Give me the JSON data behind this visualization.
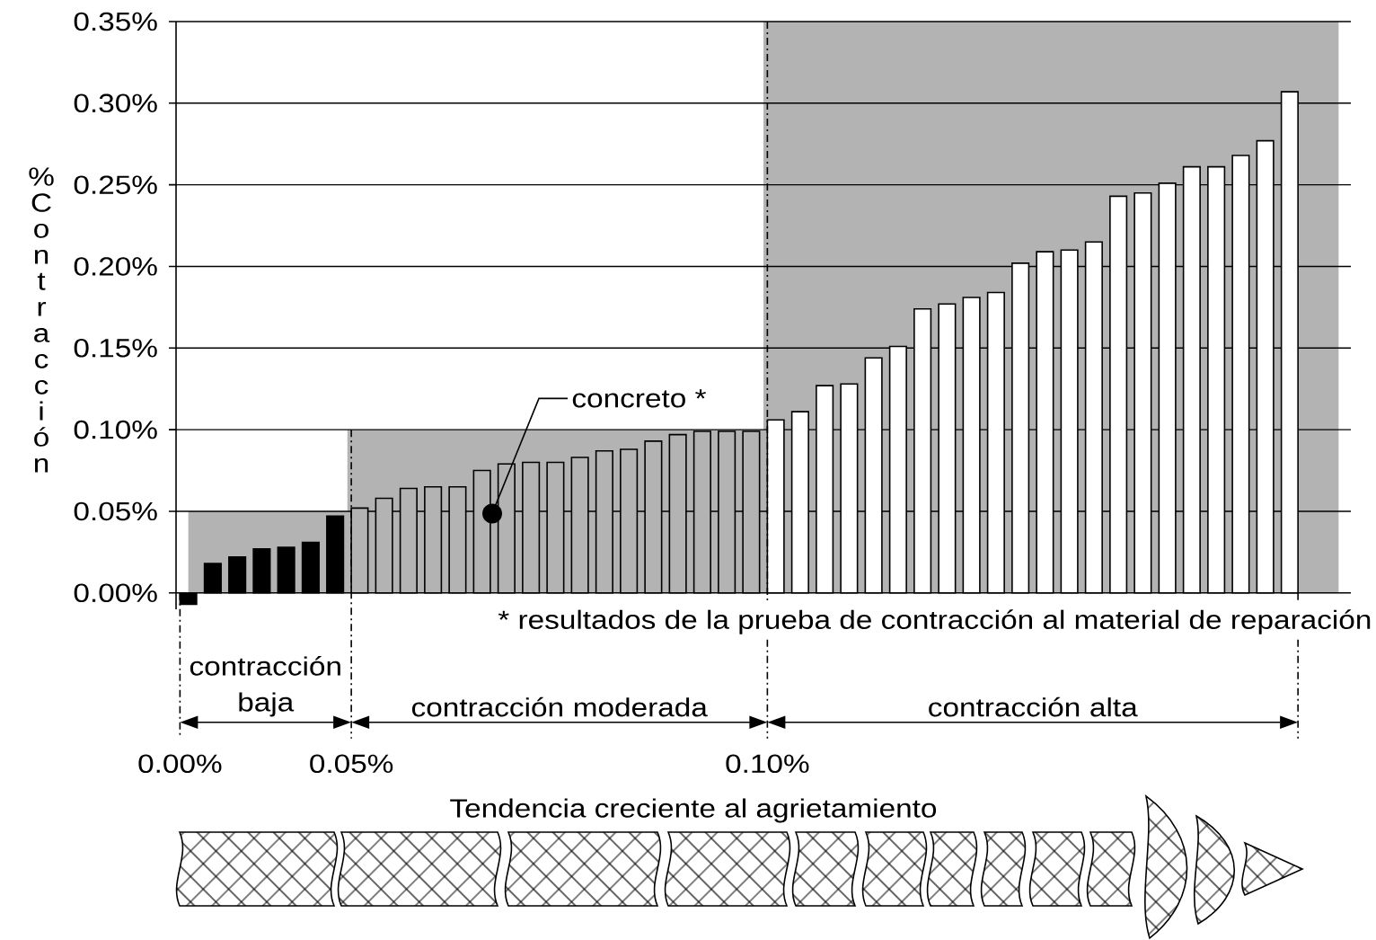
{
  "chart_data": {
    "type": "bar",
    "ylabel": "% Contracción",
    "categories": [
      null,
      null,
      null,
      null,
      null,
      null,
      null,
      null,
      null,
      null,
      null,
      null,
      null,
      null,
      null,
      null,
      null,
      null,
      null,
      null,
      null,
      null,
      null,
      null,
      null,
      null,
      null,
      null,
      null,
      null,
      null,
      null,
      null,
      null,
      null,
      null,
      null,
      null,
      null,
      null,
      null,
      null,
      null,
      null,
      null,
      null,
      null,
      null
    ],
    "series": [
      {
        "type": "area",
        "color": "#b3b3b3",
        "values": [
          0.05,
          0.05,
          0.05,
          0.05,
          0.05,
          0.05,
          0.05,
          0.1,
          0.1,
          0.1,
          0.1,
          0.1,
          0.1,
          0.1,
          0.1,
          0.1,
          0.1,
          0.1,
          0.1,
          0.1,
          0.1,
          0.1,
          0.1,
          0.1,
          0.35,
          0.35,
          0.35,
          0.35,
          0.35,
          0.35,
          0.35,
          0.35,
          0.35,
          0.35,
          0.35,
          0.35,
          0.35,
          0.35,
          0.35,
          0.35,
          0.35,
          0.35,
          0.35,
          0.35,
          0.35,
          0.35,
          0.35,
          0.35
        ]
      },
      {
        "color": "#000000",
        "values": [
          -0.007,
          0.018,
          0.022,
          0.027,
          0.028,
          0.031,
          0.047,
          null,
          null,
          null,
          null,
          null,
          null,
          null,
          null,
          null,
          null,
          null,
          null,
          null,
          null,
          null,
          null,
          null,
          null,
          null,
          null,
          null,
          null,
          null,
          null,
          null,
          null,
          null,
          null,
          null,
          null,
          null,
          null,
          null,
          null,
          null,
          null,
          null,
          null,
          null,
          null,
          null
        ]
      },
      {
        "color": "#b3b3b3",
        "values": [
          null,
          null,
          null,
          null,
          null,
          null,
          null,
          0.052,
          0.058,
          0.064,
          0.065,
          0.065,
          0.075,
          0.079,
          0.08,
          0.08,
          0.083,
          0.087,
          0.088,
          0.093,
          0.097,
          0.099,
          0.099,
          0.099,
          null,
          null,
          null,
          null,
          null,
          null,
          null,
          null,
          null,
          null,
          null,
          null,
          null,
          null,
          null,
          null,
          null,
          null,
          null,
          null,
          null,
          null,
          null,
          null
        ]
      },
      {
        "color": "#ffffff",
        "values": [
          null,
          null,
          null,
          null,
          null,
          null,
          null,
          null,
          null,
          null,
          null,
          null,
          null,
          null,
          null,
          null,
          null,
          null,
          null,
          null,
          null,
          null,
          null,
          null,
          0.106,
          0.111,
          0.127,
          0.128,
          0.144,
          0.151,
          0.174,
          0.177,
          0.181,
          0.184,
          0.202,
          0.209,
          0.21,
          0.215,
          0.243,
          0.245,
          0.251,
          0.261,
          0.261,
          0.268,
          0.277,
          0.307,
          null,
          null
        ]
      }
    ],
    "ylim": [
      -0.01,
      0.35
    ],
    "yticks": [
      {
        "value": 0,
        "label": "0.00%"
      },
      {
        "value": 0.05,
        "label": "0.05%"
      },
      {
        "value": 0.1,
        "label": "0.10%"
      },
      {
        "value": 0.15,
        "label": "0.15%"
      },
      {
        "value": 0.2,
        "label": "0.20%"
      },
      {
        "value": 0.25,
        "label": "0.25%"
      },
      {
        "value": 0.3,
        "label": "0.30%"
      },
      {
        "value": 0.35,
        "label": "0.35%"
      }
    ],
    "grid": "y",
    "annotations": [
      "contracción baja",
      "contracción moderada",
      "contracción alta",
      "0.00%",
      "0.05%",
      "0.10%",
      "concreto *",
      "* resultados de la prueba de contracción al material de reparación",
      "Tendencia creciente al agrietamiento"
    ]
  }
}
